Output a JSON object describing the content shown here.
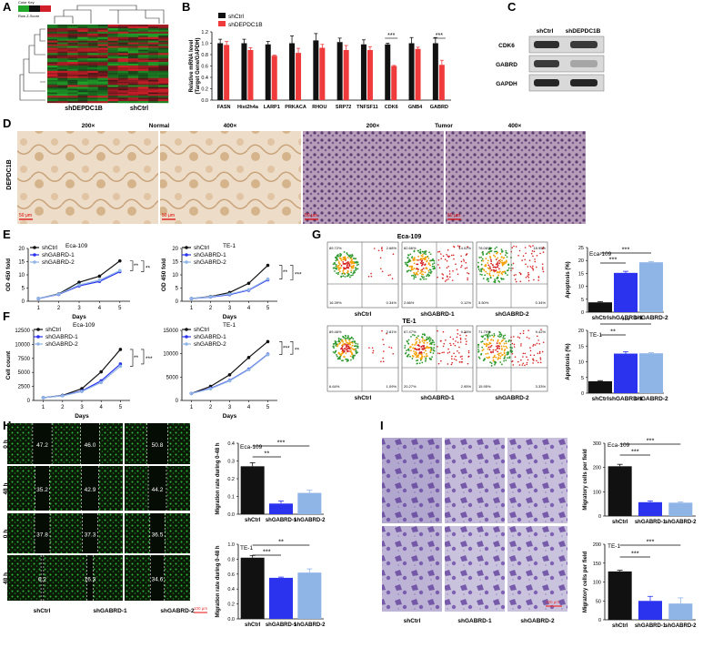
{
  "panels": {
    "A": "A",
    "B": "B",
    "C": "C",
    "D": "D",
    "E": "E",
    "F": "F",
    "G": "G",
    "H": "H",
    "I": "I"
  },
  "panel_A": {
    "legend_title": "Color Key",
    "legend_sub": "Row Z-Score",
    "columns": [
      "shDEPDC1B",
      "shCtrl"
    ],
    "colors": {
      "low": "#21a52a",
      "mid": "#111111",
      "high": "#d1202a"
    }
  },
  "panel_C": {
    "lanes": [
      "shCtrl",
      "shDEPDC1B"
    ],
    "bands": [
      "CDK6",
      "GABRD",
      "GAPDH"
    ],
    "ctrl_intensity": [
      0.85,
      0.8,
      0.9
    ],
    "kd_intensity": [
      0.8,
      0.25,
      0.9
    ]
  },
  "panel_D": {
    "normal_label": "Normal",
    "tumor_label": "Tumor",
    "mag": [
      "200×",
      "400×",
      "200×",
      "400×"
    ],
    "ylabel": "DEPDC1B",
    "scalebar": [
      "50 μm",
      "50 μm",
      "50 μm",
      "50 μm"
    ]
  },
  "panel_H": {
    "rows": [
      "0 h",
      "48 h",
      "0 h",
      "48 h"
    ],
    "cols": [
      "shCtrl",
      "shGABRD-1",
      "shGABRD-2"
    ],
    "values": [
      [
        "47.2",
        "46.0",
        "50.8"
      ],
      [
        "35.2",
        "42.9",
        "44.2"
      ],
      [
        "37.8",
        "37.3",
        "36.5"
      ],
      [
        "6.2",
        "16.3",
        "34.6"
      ]
    ],
    "scalebar": "100 μm"
  },
  "panel_I": {
    "cols": [
      "shCtrl",
      "shGABRD-1",
      "shGABRD-2"
    ],
    "scalebar": "100 μm"
  },
  "panel_G": {
    "titles": [
      "Eca-109",
      "TE-1"
    ],
    "cols": [
      "shCtrl",
      "shGABRD-1",
      "shGABRD-2"
    ],
    "quad": [
      [
        "89.72%",
        "2.68%",
        "16.39%",
        "0.34%"
      ],
      [
        "82.66%",
        "14.02%",
        "2.66%",
        "0.12%"
      ],
      [
        "78.06%",
        "18.95%",
        "3.50%",
        "0.34%"
      ],
      [
        "89.46%",
        "2.81%",
        "6.64%",
        "1.09%"
      ],
      [
        "67.47%",
        "9.38%",
        "20.27%",
        "2.95%"
      ],
      [
        "71.79%",
        "9.42%",
        "15.95%",
        "3.33%"
      ]
    ],
    "colors": {
      "hot": "#d62020",
      "warm": "#f5a000",
      "cool": "#2f9a2f"
    }
  },
  "chart_data": [
    {
      "id": "B",
      "type": "bar",
      "categories": [
        "FASN",
        "Hist2h4a",
        "LARP1",
        "PRKACA",
        "RHOU",
        "SRP72",
        "TNFSF11",
        "CDK6",
        "GNB4",
        "GABRD"
      ],
      "ylabel": "Relative mRNA level\n(Target Gene/GAPDH)",
      "ylim": [
        0,
        1.2
      ],
      "yticks": [
        "0.0",
        "0.2",
        "0.4",
        "0.6",
        "0.8",
        "1.0",
        "1.2"
      ],
      "ytick_values": [
        0,
        0.2,
        0.4,
        0.6,
        0.8,
        1.0,
        1.2
      ],
      "series": [
        {
          "name": "shCtrl",
          "color": "#111111",
          "values": [
            1.0,
            1.0,
            0.98,
            1.0,
            1.05,
            1.02,
            0.98,
            0.98,
            1.0,
            1.0
          ],
          "err": [
            0.07,
            0.07,
            0.05,
            0.13,
            0.12,
            0.07,
            0.08,
            0.02,
            0.1,
            0.1
          ]
        },
        {
          "name": "shDEPDC1B",
          "color": "#ef3b3b",
          "values": [
            0.97,
            0.88,
            0.78,
            0.83,
            0.92,
            0.88,
            0.88,
            0.6,
            0.9,
            0.62
          ],
          "err": [
            0.06,
            0.04,
            0.01,
            0.08,
            0.06,
            0.08,
            0.06,
            0.01,
            0.03,
            0.08
          ]
        }
      ],
      "sig": [
        {
          "index": 7,
          "label": "***"
        },
        {
          "index": 9,
          "label": "***"
        }
      ]
    },
    {
      "id": "E1",
      "type": "line",
      "title": "Eca-109",
      "x": [
        1,
        2,
        3,
        4,
        5
      ],
      "xlabel": "Days",
      "ylabel": "OD 450 fold",
      "ylim": [
        0,
        20
      ],
      "yticks": [
        "0",
        "5",
        "10",
        "15",
        "20"
      ],
      "ytick_values": [
        0,
        5,
        10,
        15,
        20
      ],
      "series": [
        {
          "name": "shCtrl",
          "color": "#111111",
          "values": [
            1,
            2.8,
            7.2,
            9.5,
            15.3
          ]
        },
        {
          "name": "shGABRD-1",
          "color": "#2b33ee",
          "values": [
            1,
            2.6,
            5.8,
            7.5,
            11.2
          ]
        },
        {
          "name": "shGABRD-2",
          "color": "#8fb4e6",
          "values": [
            1,
            2.7,
            6.2,
            8.0,
            11.6
          ]
        }
      ],
      "sig": [
        "**",
        "**"
      ]
    },
    {
      "id": "E2",
      "type": "line",
      "title": "TE-1",
      "x": [
        1,
        2,
        3,
        4,
        5
      ],
      "xlabel": "Days",
      "ylabel": "OD 450 fold",
      "ylim": [
        0,
        20
      ],
      "yticks": [
        "0",
        "5",
        "10",
        "15",
        "20"
      ],
      "ytick_values": [
        0,
        5,
        10,
        15,
        20
      ],
      "series": [
        {
          "name": "shCtrl",
          "color": "#111111",
          "values": [
            1,
            1.8,
            3.3,
            6.8,
            13.6
          ]
        },
        {
          "name": "shGABRD-1",
          "color": "#2b33ee",
          "values": [
            1,
            1.6,
            2.5,
            4.2,
            8.1
          ]
        },
        {
          "name": "shGABRD-2",
          "color": "#8fb4e6",
          "values": [
            1,
            1.7,
            2.7,
            4.4,
            8.4
          ]
        }
      ],
      "sig": [
        "**",
        "***"
      ]
    },
    {
      "id": "F1",
      "type": "line",
      "title": "Eca-109",
      "x": [
        1,
        2,
        3,
        4,
        5
      ],
      "xlabel": "Days",
      "ylabel": "Cell count",
      "ylim": [
        0,
        12500
      ],
      "yticks": [
        "0",
        "2500",
        "5000",
        "7500",
        "10000",
        "12500"
      ],
      "ytick_values": [
        0,
        2500,
        5000,
        7500,
        10000,
        12500
      ],
      "series": [
        {
          "name": "shCtrl",
          "color": "#111111",
          "values": [
            500,
            900,
            2100,
            5100,
            9100
          ]
        },
        {
          "name": "shGABRD-1",
          "color": "#2b33ee",
          "values": [
            500,
            850,
            1700,
            3500,
            6500
          ]
        },
        {
          "name": "shGABRD-2",
          "color": "#8fb4e6",
          "values": [
            500,
            830,
            1600,
            3200,
            6100
          ]
        }
      ],
      "sig": [
        "**",
        "***"
      ]
    },
    {
      "id": "F2",
      "type": "line",
      "title": "TE-1",
      "x": [
        1,
        2,
        3,
        4,
        5
      ],
      "xlabel": "Days",
      "ylabel": "",
      "ylim": [
        0,
        15000
      ],
      "yticks": [
        "0",
        "5000",
        "10000",
        "15000"
      ],
      "ytick_values": [
        0,
        5000,
        10000,
        15000
      ],
      "series": [
        {
          "name": "shCtrl",
          "color": "#111111",
          "values": [
            1500,
            3000,
            5500,
            9200,
            12600
          ]
        },
        {
          "name": "shGABRD-1",
          "color": "#2b33ee",
          "values": [
            1500,
            2600,
            4300,
            6700,
            9900
          ]
        },
        {
          "name": "shGABRD-2",
          "color": "#8fb4e6",
          "values": [
            1500,
            2500,
            4200,
            6600,
            9800
          ]
        }
      ],
      "sig": [
        "***",
        "**"
      ]
    },
    {
      "id": "G1",
      "type": "bar",
      "title": "Eca-109",
      "categories": [
        "shCtrl",
        "shGABRD-1",
        "shGABRD-2"
      ],
      "ylabel": "Apoptosis (%)",
      "ylim": [
        0,
        25
      ],
      "yticks": [
        "0",
        "5",
        "10",
        "15",
        "20",
        "25"
      ],
      "ytick_values": [
        0,
        5,
        10,
        15,
        20,
        25
      ],
      "values": [
        3.8,
        15.2,
        19.3
      ],
      "err": [
        0.3,
        0.6,
        0.3
      ],
      "colors": [
        "#111111",
        "#2b33ee",
        "#8fb4e6"
      ],
      "sig": [
        {
          "from": 0,
          "to": 1,
          "label": "***"
        },
        {
          "from": 0,
          "to": 2,
          "label": "***"
        }
      ]
    },
    {
      "id": "G2",
      "type": "bar",
      "title": "TE-1",
      "categories": [
        "shCtrl",
        "shGABRD-1",
        "shGABRD-2"
      ],
      "ylabel": "Apoptosis (%)",
      "ylim": [
        0,
        20
      ],
      "yticks": [
        "0",
        "5",
        "10",
        "15",
        "20"
      ],
      "ytick_values": [
        0,
        5,
        10,
        15,
        20
      ],
      "values": [
        3.8,
        12.6,
        12.7
      ],
      "err": [
        0.2,
        0.6,
        0.2
      ],
      "colors": [
        "#111111",
        "#2b33ee",
        "#8fb4e6"
      ],
      "sig": [
        {
          "from": 0,
          "to": 1,
          "label": "**"
        },
        {
          "from": 0,
          "to": 2,
          "label": "***"
        }
      ]
    },
    {
      "id": "H1",
      "type": "bar",
      "title": "Eca-109",
      "categories": [
        "shCtrl",
        "shGABRD-1",
        "shGABRD-2"
      ],
      "ylabel": "Migration rate during 0-48 h",
      "ylim": [
        0,
        0.4
      ],
      "yticks": [
        "0.0",
        "0.1",
        "0.2",
        "0.3",
        "0.4"
      ],
      "ytick_values": [
        0,
        0.1,
        0.2,
        0.3,
        0.4
      ],
      "values": [
        0.27,
        0.06,
        0.12
      ],
      "err": [
        0.02,
        0.015,
        0.015
      ],
      "colors": [
        "#111111",
        "#2b33ee",
        "#8fb4e6"
      ],
      "sig": [
        {
          "from": 0,
          "to": 1,
          "label": "**"
        },
        {
          "from": 0,
          "to": 2,
          "label": "***"
        }
      ]
    },
    {
      "id": "H2",
      "type": "bar",
      "title": "TE-1",
      "categories": [
        "shCtrl",
        "shGABRD-1",
        "shGABRD-2"
      ],
      "ylabel": "Migration rate during 0-48 h",
      "ylim": [
        0,
        1.0
      ],
      "yticks": [
        "0.0",
        "0.2",
        "0.4",
        "0.6",
        "0.8",
        "1.0"
      ],
      "ytick_values": [
        0,
        0.2,
        0.4,
        0.6,
        0.8,
        1.0
      ],
      "values": [
        0.82,
        0.55,
        0.62
      ],
      "err": [
        0.03,
        0.01,
        0.05
      ],
      "colors": [
        "#111111",
        "#2b33ee",
        "#8fb4e6"
      ],
      "sig": [
        {
          "from": 0,
          "to": 1,
          "label": "***"
        },
        {
          "from": 0,
          "to": 2,
          "label": "**"
        }
      ]
    },
    {
      "id": "I1",
      "type": "bar",
      "title": "Eca-109",
      "categories": [
        "shCtrl",
        "shGABRD-1",
        "shGABRD-2"
      ],
      "ylabel": "Migratory cells per field",
      "ylim": [
        0,
        300
      ],
      "yticks": [
        "0",
        "100",
        "200",
        "300"
      ],
      "ytick_values": [
        0,
        100,
        200,
        300
      ],
      "values": [
        205,
        57,
        55
      ],
      "err": [
        8,
        5,
        3
      ],
      "colors": [
        "#111111",
        "#2b33ee",
        "#8fb4e6"
      ],
      "sig": [
        {
          "from": 0,
          "to": 1,
          "label": "***"
        },
        {
          "from": 0,
          "to": 2,
          "label": "***"
        }
      ]
    },
    {
      "id": "I2",
      "type": "bar",
      "title": "TE-1",
      "categories": [
        "shCtrl",
        "shGABRD-1",
        "shGABRD-2"
      ],
      "ylabel": "Migratory cells per field",
      "ylim": [
        0,
        200
      ],
      "yticks": [
        "0",
        "50",
        "100",
        "150",
        "200"
      ],
      "ytick_values": [
        0,
        50,
        100,
        150,
        200
      ],
      "values": [
        128,
        50,
        43
      ],
      "err": [
        3,
        12,
        15
      ],
      "colors": [
        "#111111",
        "#2b33ee",
        "#8fb4e6"
      ],
      "sig": [
        {
          "from": 0,
          "to": 1,
          "label": "***"
        },
        {
          "from": 0,
          "to": 2,
          "label": "***"
        }
      ]
    }
  ]
}
